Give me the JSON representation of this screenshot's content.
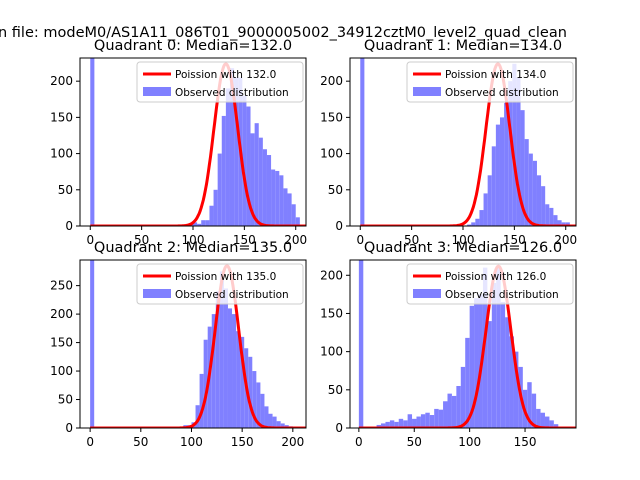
{
  "figure": {
    "suptitle": "n file: modeM0/AS1A11_086T01_9000005002_34912cztM0_level2_quad_clean"
  },
  "colors": {
    "hist": "#8080ff",
    "poisson": "#ff0000",
    "axes": "#000000",
    "background": "#ffffff"
  },
  "chart_data": [
    {
      "type": "bar",
      "title": "Quadrant 0: Median=132.0",
      "median": 132.0,
      "xlim": [
        -10,
        210
      ],
      "ylim": [
        0,
        232
      ],
      "xticks": [
        "0",
        "50",
        "100",
        "150",
        "200"
      ],
      "yticks": [
        "0",
        "50",
        "100",
        "150",
        "200"
      ],
      "legend": {
        "position": "top-right",
        "entries": [
          "Poission with 132.0",
          "Observed distribution"
        ]
      },
      "hist": {
        "bin_start": 0,
        "bin_width": 4,
        "values": [
          232,
          0,
          0,
          0,
          0,
          0,
          0,
          0,
          0,
          0,
          0,
          0,
          0,
          0,
          0,
          0,
          0,
          0,
          0,
          0,
          0,
          0,
          0,
          0,
          2,
          5,
          3,
          8,
          8,
          28,
          50,
          100,
          152,
          190,
          218,
          205,
          205,
          180,
          165,
          128,
          142,
          122,
          106,
          98,
          78,
          76,
          70,
          52,
          45,
          30,
          12
        ]
      },
      "poisson": {
        "mean": 132.0,
        "scale": 224
      }
    },
    {
      "type": "bar",
      "title": "Quadrant 1: Median=134.0",
      "median": 134.0,
      "xlim": [
        -10,
        210
      ],
      "ylim": [
        0,
        232
      ],
      "xticks": [
        "0",
        "50",
        "100",
        "150",
        "200"
      ],
      "yticks": [
        "0",
        "50",
        "100",
        "150",
        "200"
      ],
      "legend": {
        "position": "top-right",
        "entries": [
          "Poission with 134.0",
          "Observed distribution"
        ]
      },
      "hist": {
        "bin_start": 0,
        "bin_width": 4,
        "values": [
          232,
          0,
          0,
          0,
          0,
          0,
          0,
          0,
          0,
          0,
          0,
          0,
          0,
          0,
          0,
          0,
          0,
          0,
          0,
          0,
          0,
          0,
          0,
          0,
          0,
          0,
          2,
          5,
          10,
          22,
          45,
          70,
          110,
          140,
          150,
          170,
          200,
          224,
          205,
          160,
          120,
          100,
          90,
          70,
          55,
          30,
          25,
          15,
          8,
          5,
          5
        ]
      },
      "poisson": {
        "mean": 134.0,
        "scale": 224
      }
    },
    {
      "type": "bar",
      "title": "Quadrant 2: Median=135.0",
      "median": 135.0,
      "xlim": [
        -10,
        213
      ],
      "ylim": [
        0,
        295
      ],
      "xticks": [
        "0",
        "50",
        "100",
        "150",
        "200"
      ],
      "yticks": [
        "0",
        "50",
        "100",
        "150",
        "200",
        "250"
      ],
      "legend": {
        "position": "top-right",
        "entries": [
          "Poission with 135.0",
          "Observed distribution"
        ]
      },
      "hist": {
        "bin_start": 0,
        "bin_width": 4,
        "values": [
          295,
          0,
          0,
          0,
          0,
          0,
          0,
          0,
          0,
          0,
          0,
          0,
          0,
          0,
          0,
          0,
          0,
          0,
          0,
          0,
          0,
          0,
          2,
          5,
          5,
          10,
          40,
          95,
          155,
          178,
          200,
          240,
          275,
          245,
          210,
          200,
          170,
          160,
          140,
          125,
          100,
          80,
          60,
          38,
          25,
          20,
          12,
          8,
          5,
          3,
          2,
          1
        ]
      },
      "poisson": {
        "mean": 135.0,
        "scale": 285
      }
    },
    {
      "type": "bar",
      "title": "Quadrant 3: Median=126.0",
      "median": 126.0,
      "xlim": [
        -8,
        196
      ],
      "ylim": [
        0,
        220
      ],
      "xticks": [
        "0",
        "50",
        "100",
        "150"
      ],
      "yticks": [
        "0",
        "50",
        "100",
        "150",
        "200"
      ],
      "legend": {
        "position": "top-right",
        "entries": [
          "Poission with 126.0",
          "Observed distribution"
        ]
      },
      "hist": {
        "bin_start": 0,
        "bin_width": 4,
        "values": [
          220,
          0,
          0,
          0,
          4,
          6,
          8,
          10,
          8,
          12,
          10,
          18,
          12,
          15,
          18,
          20,
          17,
          25,
          24,
          35,
          45,
          42,
          55,
          80,
          118,
          160,
          170,
          175,
          210,
          140,
          190,
          210,
          165,
          145,
          120,
          100,
          80,
          50,
          60,
          45,
          25,
          20,
          15,
          10,
          5
        ]
      },
      "poisson": {
        "mean": 126.0,
        "scale": 212
      }
    }
  ]
}
